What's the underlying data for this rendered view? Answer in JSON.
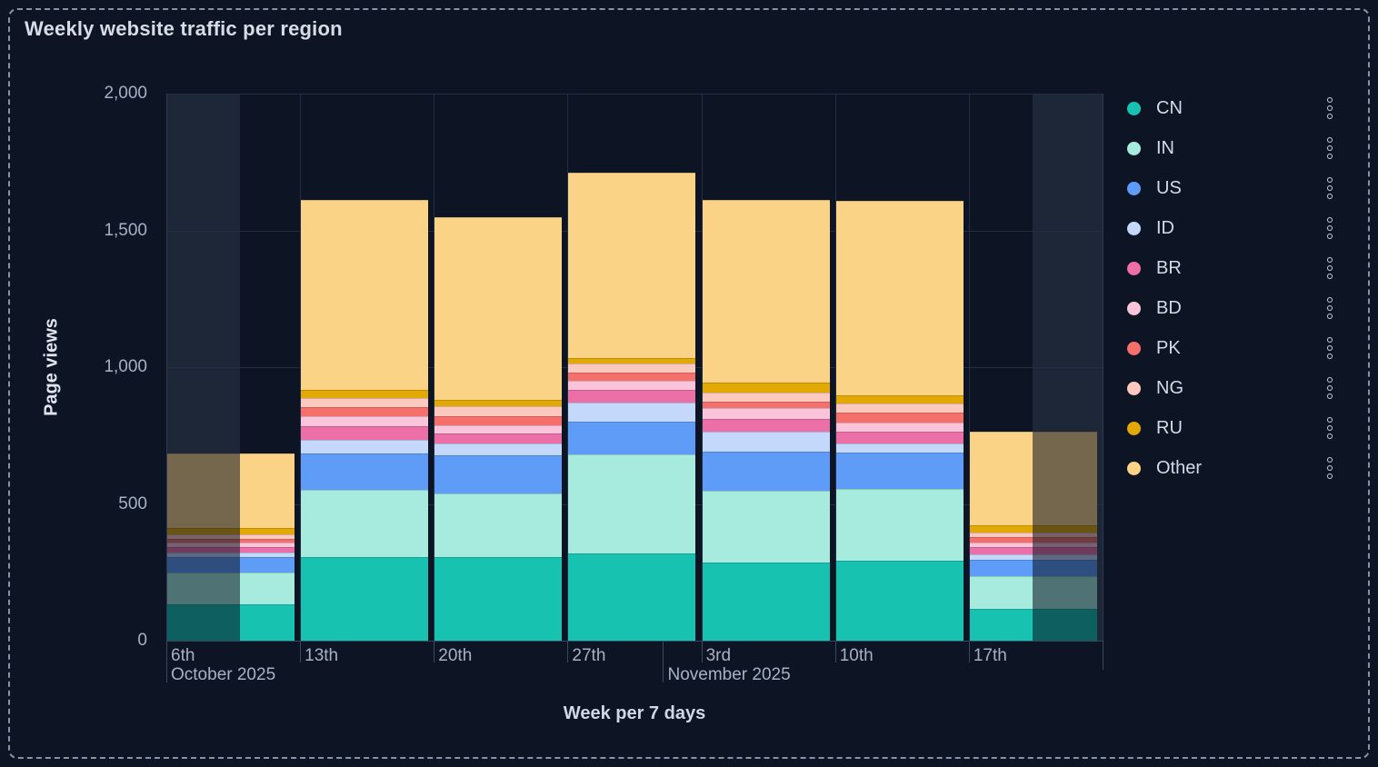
{
  "title": "Weekly website traffic per region",
  "y_axis": {
    "label": "Page views",
    "tick_labels": [
      "0",
      "500",
      "1,000",
      "1,500",
      "2,000"
    ],
    "tick_values": [
      0,
      500,
      1000,
      1500,
      2000
    ]
  },
  "x_axis": {
    "label": "Week per 7 days",
    "tick_labels": [
      "6th",
      "13th",
      "20th",
      "27th",
      "3rd",
      "10th",
      "17th"
    ],
    "month_labels": [
      {
        "text": "October 2025",
        "week_offset": 0
      },
      {
        "text": "November 2025",
        "week_offset": 3.714
      }
    ]
  },
  "legend": {
    "menu_icon": "kebab-vertical-icon"
  },
  "chart_data": {
    "type": "bar",
    "stacked": true,
    "title": "Weekly website traffic per region",
    "xlabel": "Week per 7 days",
    "ylabel": "Page views",
    "ylim": [
      0,
      2000
    ],
    "grid": true,
    "legend_position": "right",
    "categories": [
      "6th Oct",
      "13th Oct",
      "20th Oct",
      "27th Oct",
      "3rd Nov",
      "10th Nov",
      "17th Nov"
    ],
    "series": [
      {
        "name": "CN",
        "color": "#18c2b1",
        "values": [
          133,
          305,
          305,
          318,
          285,
          291,
          116
        ]
      },
      {
        "name": "IN",
        "color": "#a6ebdd",
        "values": [
          116,
          248,
          232,
          363,
          263,
          265,
          120
        ]
      },
      {
        "name": "US",
        "color": "#5f9cf8",
        "values": [
          56,
          132,
          141,
          119,
          144,
          131,
          60
        ]
      },
      {
        "name": "ID",
        "color": "#c3d8fb",
        "values": [
          17,
          49,
          44,
          70,
          72,
          33,
          20
        ]
      },
      {
        "name": "BR",
        "color": "#ed6fa7",
        "values": [
          22,
          50,
          35,
          46,
          47,
          44,
          28
        ]
      },
      {
        "name": "BD",
        "color": "#fac5da",
        "values": [
          15,
          36,
          31,
          33,
          38,
          32,
          14
        ]
      },
      {
        "name": "PK",
        "color": "#f5706a",
        "values": [
          15,
          35,
          34,
          31,
          26,
          37,
          22
        ]
      },
      {
        "name": "NG",
        "color": "#fdc9be",
        "values": [
          15,
          31,
          36,
          33,
          33,
          33,
          15
        ]
      },
      {
        "name": "RU",
        "color": "#e2a803",
        "values": [
          22,
          31,
          22,
          22,
          36,
          33,
          26
        ]
      },
      {
        "name": "Other",
        "color": "#fad387",
        "values": [
          274,
          693,
          670,
          675,
          666,
          711,
          344
        ]
      }
    ],
    "totals": [
      685,
      1610,
      1550,
      1710,
      1610,
      1610,
      765
    ],
    "partial_week_shading": [
      {
        "category_index": 0,
        "from_frac": 0,
        "to_frac": 0.55
      },
      {
        "category_index": 6,
        "from_frac": 0.48,
        "to_frac": 1
      }
    ]
  },
  "colors": {
    "background": "#0d1524",
    "shaded_band": "#1e2737",
    "grid_line": "#232e45",
    "plot_edge": "#2d3952",
    "axis_line": "#36435e",
    "tick_mark": "#3b4860",
    "text_muted": "#a6b2c4",
    "text_bright": "#d6dde8",
    "dashed_border": "#8593a8",
    "dim_overlay": "rgba(8,15,30,0.55)"
  }
}
